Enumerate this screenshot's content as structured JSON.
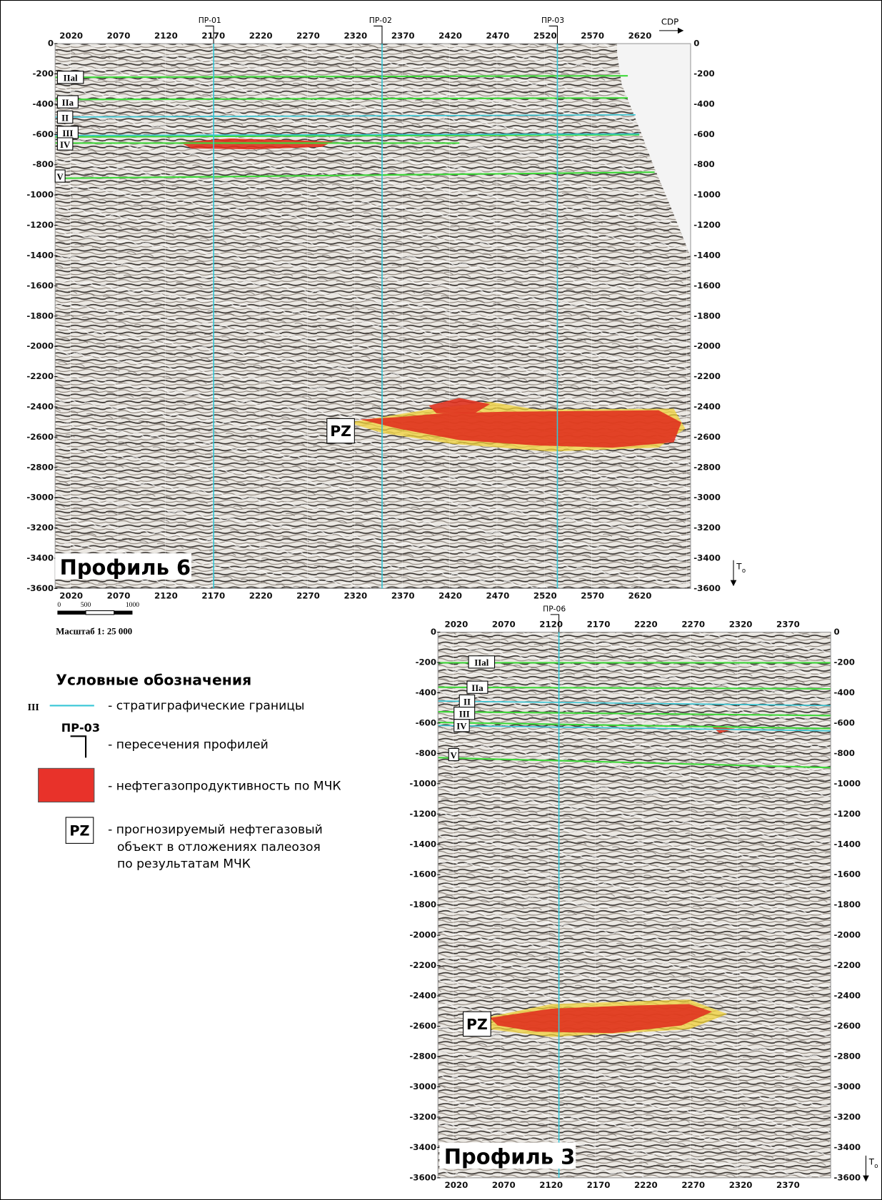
{
  "profiles": [
    {
      "title": "Профиль 6",
      "cdp_label": "CDP",
      "time_axis_label": "T",
      "time_axis_subscript": "o",
      "cdp_ticks": [
        2020,
        2070,
        2120,
        2170,
        2220,
        2270,
        2320,
        2370,
        2420,
        2470,
        2520,
        2570,
        2620
      ],
      "time_ticks": [
        0,
        -200,
        -400,
        -600,
        -800,
        -1000,
        -1200,
        -1400,
        -1600,
        -1800,
        -2000,
        -2200,
        -2400,
        -2600,
        -2800,
        -3000,
        -3200,
        -3400,
        -3600
      ],
      "intersections": [
        "ПР-01",
        "ПР-02",
        "ПР-03"
      ],
      "horizons": [
        "IIal",
        "IIa",
        "II",
        "III",
        "IV",
        "V"
      ],
      "object_label": "PZ"
    },
    {
      "title": "Профиль 3",
      "time_axis_label": "T",
      "time_axis_subscript": "o",
      "cdp_ticks": [
        2020,
        2070,
        2120,
        2170,
        2220,
        2270,
        2320,
        2370
      ],
      "time_ticks": [
        0,
        -200,
        -400,
        -600,
        -800,
        -1000,
        -1200,
        -1400,
        -1600,
        -1800,
        -2000,
        -2200,
        -2400,
        -2600,
        -2800,
        -3000,
        -3200,
        -3400,
        -3600
      ],
      "intersections": [
        "ПР-06"
      ],
      "horizons": [
        "IIal",
        "IIa",
        "II",
        "III",
        "IV",
        "V"
      ],
      "object_label": "PZ"
    }
  ],
  "scale": {
    "ticks": [
      0,
      500,
      1000
    ],
    "label": "Масштаб 1: 25 000"
  },
  "legend": {
    "title": "Условные обозначения",
    "items": [
      {
        "symbol": "III",
        "text": "- стратиграфические границы"
      },
      {
        "symbol": "ПР-03",
        "text": "- пересечения профилей"
      },
      {
        "text": "- нефтегазопродуктивность по МЧК"
      },
      {
        "symbol": "PZ",
        "lines": [
          "- прогнозируемый нефтегазовый",
          "объект в отложениях палеозоя",
          "по результатам МЧК"
        ]
      }
    ]
  }
}
